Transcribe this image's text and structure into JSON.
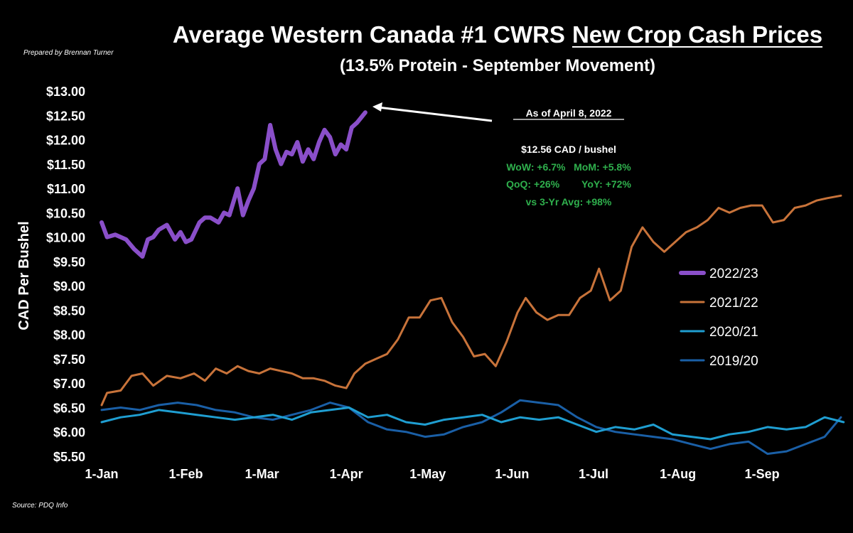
{
  "chart_data": {
    "type": "line",
    "title_prefix": "Average Western Canada #1 CWRS",
    "title_underlined": "New Crop Cash Prices",
    "subtitle": "(13.5% Protein - September Movement)",
    "credit": "Prepared by Brennan Turner",
    "source": "Source: PDQ Info",
    "ylabel": "CAD Per Bushel",
    "xlabel": "",
    "ylim": [
      5.5,
      13.0
    ],
    "y_ticks": [
      "$5.50",
      "$6.00",
      "$6.50",
      "$7.00",
      "$7.50",
      "$8.00",
      "$8.50",
      "$9.00",
      "$9.50",
      "$10.00",
      "$10.50",
      "$11.00",
      "$11.50",
      "$12.00",
      "$12.50",
      "$13.00"
    ],
    "x_ticks": [
      "1-Jan",
      "1-Feb",
      "1-Mar",
      "1-Apr",
      "1-May",
      "1-Jun",
      "1-Jul",
      "1-Aug",
      "1-Sep"
    ],
    "grid": false,
    "legend_position": "right",
    "series": [
      {
        "name": "2022/23",
        "color": "#8a4fc9",
        "width": 6,
        "x": [
          "2022-01-01",
          "2022-01-03",
          "2022-01-06",
          "2022-01-10",
          "2022-01-13",
          "2022-01-16",
          "2022-01-18",
          "2022-01-20",
          "2022-01-22",
          "2022-01-25",
          "2022-01-28",
          "2022-01-30",
          "2022-02-01",
          "2022-02-03",
          "2022-02-06",
          "2022-02-08",
          "2022-02-10",
          "2022-02-13",
          "2022-02-15",
          "2022-02-17",
          "2022-02-20",
          "2022-02-22",
          "2022-02-24",
          "2022-02-26",
          "2022-02-28",
          "2022-03-02",
          "2022-03-04",
          "2022-03-06",
          "2022-03-08",
          "2022-03-10",
          "2022-03-12",
          "2022-03-14",
          "2022-03-16",
          "2022-03-18",
          "2022-03-20",
          "2022-03-22",
          "2022-03-24",
          "2022-03-26",
          "2022-03-28",
          "2022-03-30",
          "2022-04-01",
          "2022-04-03",
          "2022-04-05",
          "2022-04-08"
        ],
        "y": [
          10.3,
          10.0,
          10.05,
          9.95,
          9.75,
          9.6,
          9.95,
          10.0,
          10.15,
          10.25,
          9.95,
          10.1,
          9.9,
          9.95,
          10.3,
          10.4,
          10.4,
          10.3,
          10.5,
          10.45,
          11.0,
          10.45,
          10.75,
          11.0,
          11.5,
          11.6,
          12.3,
          11.8,
          11.5,
          11.75,
          11.7,
          11.95,
          11.55,
          11.8,
          11.6,
          11.95,
          12.2,
          12.05,
          11.7,
          11.9,
          11.8,
          12.25,
          12.35,
          12.56
        ]
      },
      {
        "name": "2021/22",
        "color": "#c8733a",
        "width": 3,
        "x": [
          "2021-01-01",
          "2021-01-03",
          "2021-01-08",
          "2021-01-12",
          "2021-01-16",
          "2021-01-20",
          "2021-01-25",
          "2021-01-30",
          "2021-02-04",
          "2021-02-08",
          "2021-02-12",
          "2021-02-16",
          "2021-02-20",
          "2021-02-24",
          "2021-02-28",
          "2021-03-04",
          "2021-03-08",
          "2021-03-12",
          "2021-03-16",
          "2021-03-20",
          "2021-03-24",
          "2021-03-28",
          "2021-04-01",
          "2021-04-04",
          "2021-04-08",
          "2021-04-12",
          "2021-04-16",
          "2021-04-20",
          "2021-04-24",
          "2021-04-28",
          "2021-05-02",
          "2021-05-06",
          "2021-05-10",
          "2021-05-14",
          "2021-05-18",
          "2021-05-22",
          "2021-05-26",
          "2021-05-30",
          "2021-06-03",
          "2021-06-06",
          "2021-06-10",
          "2021-06-14",
          "2021-06-18",
          "2021-06-22",
          "2021-06-26",
          "2021-06-30",
          "2021-07-03",
          "2021-07-07",
          "2021-07-11",
          "2021-07-15",
          "2021-07-19",
          "2021-07-23",
          "2021-07-27",
          "2021-07-31",
          "2021-08-04",
          "2021-08-08",
          "2021-08-12",
          "2021-08-16",
          "2021-08-20",
          "2021-08-24",
          "2021-08-28",
          "2021-09-01",
          "2021-09-05",
          "2021-09-09",
          "2021-09-13",
          "2021-09-17",
          "2021-09-21",
          "2021-09-25",
          "2021-09-30"
        ],
        "y": [
          6.55,
          6.8,
          6.85,
          7.15,
          7.2,
          6.95,
          7.15,
          7.1,
          7.2,
          7.05,
          7.3,
          7.2,
          7.35,
          7.25,
          7.2,
          7.3,
          7.25,
          7.2,
          7.1,
          7.1,
          7.05,
          6.95,
          6.9,
          7.2,
          7.4,
          7.5,
          7.6,
          7.9,
          8.35,
          8.35,
          8.7,
          8.75,
          8.25,
          7.95,
          7.55,
          7.6,
          7.35,
          7.85,
          8.45,
          8.75,
          8.45,
          8.3,
          8.4,
          8.4,
          8.75,
          8.9,
          9.35,
          8.7,
          8.9,
          9.8,
          10.2,
          9.9,
          9.7,
          9.9,
          10.1,
          10.2,
          10.35,
          10.6,
          10.5,
          10.6,
          10.65,
          10.65,
          10.3,
          10.35,
          10.6,
          10.65,
          10.75,
          10.8,
          10.85
        ]
      },
      {
        "name": "2020/21",
        "color": "#1f9ed1",
        "width": 3,
        "x": [
          "2020-01-01",
          "2020-01-08",
          "2020-01-15",
          "2020-01-22",
          "2020-01-29",
          "2020-02-05",
          "2020-02-12",
          "2020-02-19",
          "2020-02-26",
          "2020-03-04",
          "2020-03-11",
          "2020-03-18",
          "2020-03-25",
          "2020-04-01",
          "2020-04-08",
          "2020-04-15",
          "2020-04-22",
          "2020-04-29",
          "2020-05-06",
          "2020-05-13",
          "2020-05-20",
          "2020-05-27",
          "2020-06-03",
          "2020-06-10",
          "2020-06-17",
          "2020-06-24",
          "2020-07-01",
          "2020-07-08",
          "2020-07-15",
          "2020-07-22",
          "2020-07-29",
          "2020-08-05",
          "2020-08-12",
          "2020-08-19",
          "2020-08-26",
          "2020-09-02",
          "2020-09-09",
          "2020-09-16",
          "2020-09-23",
          "2020-09-30"
        ],
        "y": [
          6.2,
          6.3,
          6.35,
          6.45,
          6.4,
          6.35,
          6.3,
          6.25,
          6.3,
          6.35,
          6.25,
          6.4,
          6.45,
          6.5,
          6.3,
          6.35,
          6.2,
          6.15,
          6.25,
          6.3,
          6.35,
          6.2,
          6.3,
          6.25,
          6.3,
          6.15,
          6.0,
          6.1,
          6.05,
          6.15,
          5.95,
          5.9,
          5.85,
          5.95,
          6.0,
          6.1,
          6.05,
          6.1,
          6.3,
          6.2
        ]
      },
      {
        "name": "2019/20",
        "color": "#1a5fa6",
        "width": 3,
        "x": [
          "2019-01-01",
          "2019-01-08",
          "2019-01-15",
          "2019-01-22",
          "2019-01-29",
          "2019-02-05",
          "2019-02-12",
          "2019-02-19",
          "2019-02-26",
          "2019-03-05",
          "2019-03-12",
          "2019-03-19",
          "2019-03-26",
          "2019-04-02",
          "2019-04-09",
          "2019-04-16",
          "2019-04-23",
          "2019-04-30",
          "2019-05-07",
          "2019-05-14",
          "2019-05-21",
          "2019-05-28",
          "2019-06-04",
          "2019-06-11",
          "2019-06-18",
          "2019-06-25",
          "2019-07-02",
          "2019-07-09",
          "2019-07-16",
          "2019-07-23",
          "2019-07-30",
          "2019-08-06",
          "2019-08-13",
          "2019-08-20",
          "2019-08-27",
          "2019-09-03",
          "2019-09-10",
          "2019-09-17",
          "2019-09-24",
          "2019-09-30"
        ],
        "y": [
          6.45,
          6.5,
          6.45,
          6.55,
          6.6,
          6.55,
          6.45,
          6.4,
          6.3,
          6.25,
          6.35,
          6.45,
          6.6,
          6.5,
          6.2,
          6.05,
          6.0,
          5.9,
          5.95,
          6.1,
          6.2,
          6.4,
          6.65,
          6.6,
          6.55,
          6.3,
          6.1,
          6.0,
          5.95,
          5.9,
          5.85,
          5.75,
          5.65,
          5.75,
          5.8,
          5.55,
          5.6,
          5.75,
          5.9,
          6.3
        ]
      }
    ],
    "annotation": {
      "as_of": "As of April 8, 2022",
      "price": "$12.56 CAD / bushel",
      "line1": "WoW: +6.7%   MoM: +5.8%",
      "line2": "QoQ: +26%        YoY: +72%",
      "line3": "vs 3-Yr Avg: +98%"
    }
  }
}
